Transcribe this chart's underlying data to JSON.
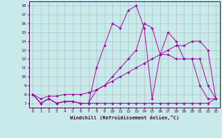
{
  "xlabel": "Windchill (Refroidissement éolien,°C)",
  "xlim": [
    -0.5,
    23.5
  ],
  "ylim": [
    6.5,
    18.5
  ],
  "xticks": [
    0,
    1,
    2,
    3,
    4,
    5,
    6,
    7,
    8,
    9,
    10,
    11,
    12,
    13,
    14,
    15,
    16,
    17,
    18,
    19,
    20,
    21,
    22,
    23
  ],
  "yticks": [
    7,
    8,
    9,
    10,
    11,
    12,
    13,
    14,
    15,
    16,
    17,
    18
  ],
  "bg_color": "#c8eaea",
  "line_color": "#aa00aa",
  "grid_color": "#b0b0b0",
  "lines": [
    {
      "x": [
        0,
        1,
        2,
        3,
        4,
        5,
        6,
        7,
        8,
        9,
        10,
        11,
        12,
        13,
        14,
        15,
        16,
        17,
        18,
        19,
        20,
        21,
        22,
        23
      ],
      "y": [
        8,
        7,
        7.5,
        7,
        7.2,
        7.2,
        7,
        7,
        7,
        7,
        7,
        7,
        7,
        7,
        7,
        7,
        7,
        7,
        7,
        7,
        7,
        7,
        7,
        7.5
      ]
    },
    {
      "x": [
        0,
        1,
        2,
        3,
        4,
        5,
        6,
        7,
        8,
        9,
        10,
        11,
        12,
        13,
        14,
        15,
        16,
        17,
        18,
        19,
        20,
        21,
        22,
        23
      ],
      "y": [
        8,
        7.5,
        7.8,
        7.8,
        8,
        8,
        8,
        8.2,
        8.5,
        9,
        9.5,
        10,
        10.5,
        11,
        11.5,
        12,
        12.5,
        13,
        13.5,
        13.5,
        14,
        14,
        13,
        7.5
      ]
    },
    {
      "x": [
        0,
        1,
        2,
        3,
        4,
        5,
        6,
        7,
        8,
        9,
        10,
        11,
        12,
        13,
        14,
        15,
        16,
        17,
        18,
        19,
        20,
        21,
        22,
        23
      ],
      "y": [
        8,
        7,
        7.5,
        7,
        7.2,
        7.2,
        7,
        7,
        11,
        13.5,
        16,
        15.5,
        17.5,
        18,
        15.5,
        7.5,
        12.5,
        15,
        14,
        12,
        12,
        9,
        7.5,
        7.5
      ]
    },
    {
      "x": [
        0,
        1,
        2,
        3,
        4,
        5,
        6,
        7,
        8,
        9,
        10,
        11,
        12,
        13,
        14,
        15,
        16,
        17,
        18,
        19,
        20,
        21,
        22,
        23
      ],
      "y": [
        8,
        7,
        7.5,
        7,
        7.2,
        7.2,
        7,
        7,
        8.5,
        9,
        10,
        11,
        12,
        13,
        16,
        15.5,
        12.5,
        12.5,
        12,
        12,
        12,
        12,
        9,
        7.5
      ]
    }
  ]
}
